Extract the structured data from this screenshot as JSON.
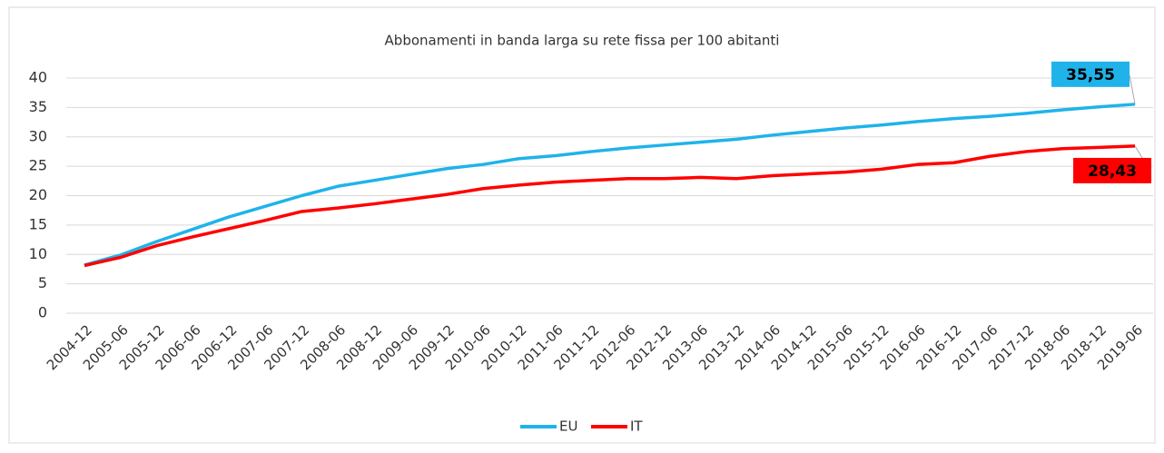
{
  "chart_data": {
    "type": "line",
    "title": "Abbonamenti in banda larga su rete fissa per 100 abitanti",
    "categories": [
      "2004-12",
      "2005-06",
      "2005-12",
      "2006-06",
      "2006-12",
      "2007-06",
      "2007-12",
      "2008-06",
      "2008-12",
      "2009-06",
      "2009-12",
      "2010-06",
      "2010-12",
      "2011-06",
      "2011-12",
      "2012-06",
      "2012-12",
      "2013-06",
      "2013-12",
      "2014-06",
      "2014-12",
      "2015-06",
      "2015-12",
      "2016-06",
      "2016-12",
      "2017-06",
      "2017-12",
      "2018-06",
      "2018-12",
      "2019-06"
    ],
    "series": [
      {
        "name": "EU",
        "color": "#1fb3ea",
        "values": [
          8.2,
          9.9,
          12.2,
          14.3,
          16.4,
          18.2,
          20.0,
          21.6,
          22.6,
          23.6,
          24.6,
          25.3,
          26.3,
          26.8,
          27.5,
          28.1,
          28.6,
          29.1,
          29.6,
          30.3,
          30.9,
          31.5,
          32.0,
          32.6,
          33.1,
          33.5,
          34.0,
          34.6,
          35.1,
          35.55
        ],
        "value_labels": [
          null,
          null,
          null,
          null,
          null,
          null,
          null,
          null,
          null,
          null,
          null,
          null,
          null,
          null,
          null,
          null,
          null,
          null,
          null,
          null,
          null,
          null,
          null,
          null,
          null,
          null,
          null,
          null,
          null,
          "35,55"
        ]
      },
      {
        "name": "IT",
        "color": "#ff0000",
        "values": [
          8.1,
          9.5,
          11.5,
          13.0,
          14.4,
          15.8,
          17.3,
          17.9,
          18.6,
          19.4,
          20.2,
          21.2,
          21.8,
          22.3,
          22.6,
          22.9,
          22.9,
          23.1,
          22.9,
          23.4,
          23.7,
          24.0,
          24.5,
          25.3,
          25.6,
          26.7,
          27.5,
          28.0,
          28.2,
          28.43
        ],
        "value_labels": [
          null,
          null,
          null,
          null,
          null,
          null,
          null,
          null,
          null,
          null,
          null,
          null,
          null,
          null,
          null,
          null,
          null,
          null,
          null,
          null,
          null,
          null,
          null,
          null,
          null,
          null,
          null,
          null,
          null,
          "28,43"
        ]
      }
    ],
    "ylim": [
      0,
      40
    ],
    "yticks": [
      0,
      5,
      10,
      15,
      20,
      25,
      30,
      35,
      40
    ],
    "grid": true,
    "legend": "bottom"
  }
}
